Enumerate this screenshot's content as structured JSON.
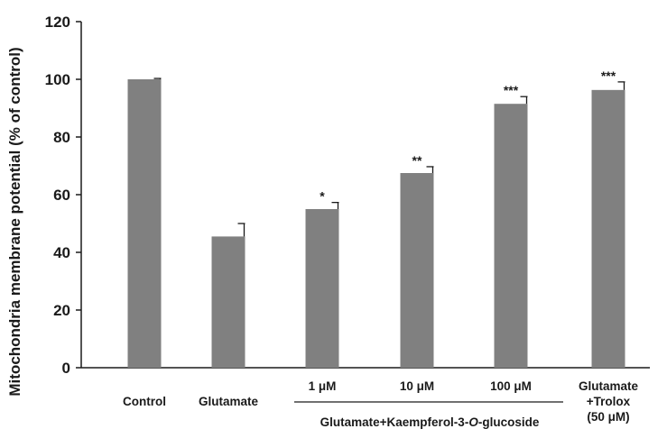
{
  "chart_data": {
    "type": "bar",
    "title": "",
    "xlabel": "",
    "ylabel": "Mitochondria membrane potential (% of control)",
    "ylim": [
      0,
      120
    ],
    "yticks": [
      0,
      20,
      40,
      60,
      80,
      100,
      120
    ],
    "categories": [
      {
        "lines": [
          "Control"
        ]
      },
      {
        "lines": [
          "Glutamate"
        ]
      },
      {
        "lines": [
          "1 μM"
        ]
      },
      {
        "lines": [
          "10 μM"
        ]
      },
      {
        "lines": [
          "100 μM"
        ]
      },
      {
        "lines": [
          "Glutamate",
          "+Trolox",
          "(50 μM)"
        ]
      }
    ],
    "values": [
      100,
      45.5,
      55,
      67.5,
      91.5,
      96.3
    ],
    "errors": [
      0.3,
      4.5,
      2.3,
      2.2,
      2.5,
      2.8
    ],
    "significance": [
      "",
      "",
      "*",
      "**",
      "***",
      "***"
    ],
    "group": {
      "label_parts": [
        "Glutamate+Kaempferol-3-",
        "O",
        "-glucoside"
      ],
      "spans_categories": [
        2,
        4
      ]
    },
    "colors": {
      "bar": "#808080",
      "axis": "#1a1a1a",
      "text": "#1a1a1a"
    }
  }
}
